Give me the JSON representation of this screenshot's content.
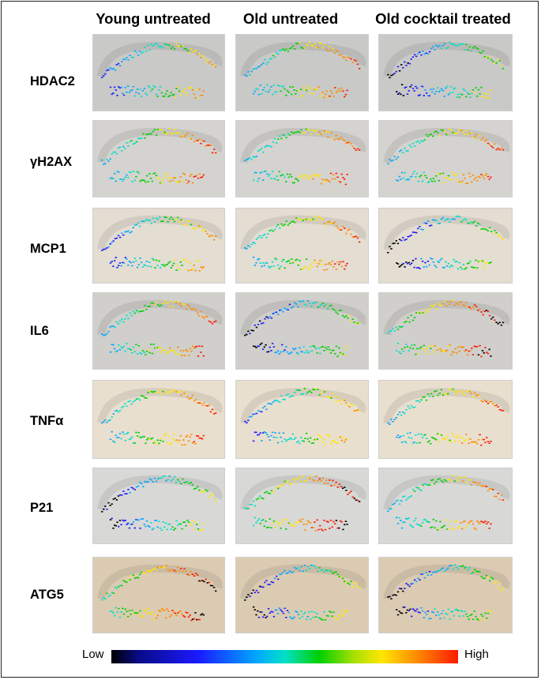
{
  "columns": [
    "Young untreated",
    "Old untreated",
    "Old cocktail treated"
  ],
  "rows": [
    "HDAC2",
    "γH2AX",
    "MCP1",
    "IL6",
    "TNFα",
    "P21",
    "ATG5"
  ],
  "legend": {
    "low": "Low",
    "high": "High"
  },
  "colors": {
    "low": "#000000",
    "mid": "#00d000",
    "high": "#ff1a00"
  }
}
